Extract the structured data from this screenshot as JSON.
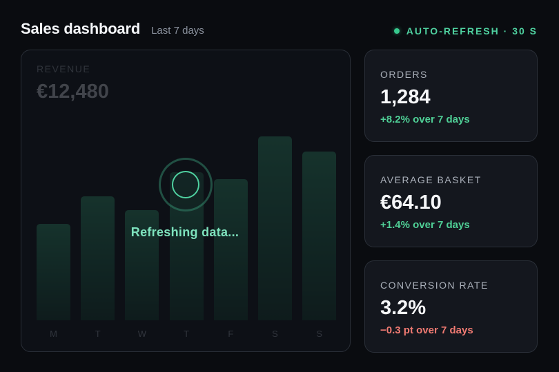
{
  "header": {
    "title": "Sales dashboard",
    "subtitle": "Last 7 days",
    "auto_refresh": "AUTO-REFRESH · 30 S",
    "status_color": "#37c98e"
  },
  "revenue": {
    "label": "REVENUE",
    "value": "€12,480",
    "loading_text": "Refreshing data..."
  },
  "chart_data": {
    "type": "bar",
    "categories": [
      "M",
      "T",
      "W",
      "T",
      "F",
      "S",
      "S"
    ],
    "values": [
      140,
      180,
      160,
      215,
      205,
      267,
      245
    ],
    "ylim": [
      0,
      300
    ],
    "grid": false,
    "bar_color": "#2e8c66"
  },
  "metrics": [
    {
      "label": "ORDERS",
      "value": "1,284",
      "change": "+8.2% over 7 days",
      "trend": "positive"
    },
    {
      "label": "AVERAGE BASKET",
      "value": "€64.10",
      "change": "+1.4% over 7 days",
      "trend": "positive"
    },
    {
      "label": "CONVERSION RATE",
      "value": "3.2%",
      "change": "−0.3 pt over 7 days",
      "trend": "negative"
    }
  ],
  "colors": {
    "accent": "#4fd1a0",
    "positive": "#4fcf96",
    "negative": "#f07a72"
  }
}
